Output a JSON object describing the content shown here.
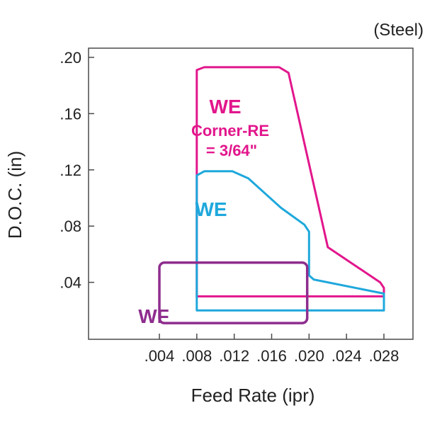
{
  "chart_data": {
    "type": "area",
    "title": "",
    "annotation": "(Steel)",
    "xlabel": "Feed Rate (ipr)",
    "ylabel": "D.O.C. (in)",
    "xlim": [
      0.0,
      0.028
    ],
    "ylim": [
      0.0,
      0.2
    ],
    "x_ticks": [
      ".004",
      ".008",
      ".012",
      ".016",
      ".020",
      ".024",
      ".028"
    ],
    "x_tick_values": [
      0.004,
      0.008,
      0.012,
      0.016,
      0.02,
      0.024,
      0.028
    ],
    "y_ticks": [
      ".04",
      ".08",
      ".12",
      ".16",
      ".20"
    ],
    "y_tick_values": [
      0.04,
      0.08,
      0.12,
      0.16,
      0.2
    ],
    "grid": false,
    "series": [
      {
        "name": "WE Corner-RE = 3/64\"",
        "label_lines": [
          "WE",
          "Corner-RE",
          "= 3/64\""
        ],
        "color": "#e2168c",
        "points": [
          [
            0.008,
            0.03
          ],
          [
            0.008,
            0.191
          ],
          [
            0.0088,
            0.193
          ],
          [
            0.0168,
            0.193
          ],
          [
            0.0178,
            0.189
          ],
          [
            0.022,
            0.065
          ],
          [
            0.0276,
            0.04
          ],
          [
            0.028,
            0.036
          ],
          [
            0.028,
            0.03
          ]
        ]
      },
      {
        "name": "WE",
        "label_lines": [
          "WE"
        ],
        "color": "#1ea8dc",
        "points": [
          [
            0.008,
            0.02
          ],
          [
            0.008,
            0.116
          ],
          [
            0.0088,
            0.119
          ],
          [
            0.0118,
            0.119
          ],
          [
            0.0135,
            0.114
          ],
          [
            0.017,
            0.093
          ],
          [
            0.0195,
            0.081
          ],
          [
            0.02,
            0.076
          ],
          [
            0.02,
            0.045
          ],
          [
            0.0205,
            0.042
          ],
          [
            0.028,
            0.032
          ],
          [
            0.028,
            0.02
          ]
        ]
      },
      {
        "name": "WF",
        "label_lines": [
          "WF"
        ],
        "color": "#8e2d8e",
        "rect": {
          "x0": 0.004,
          "x1": 0.0198,
          "y0": 0.011,
          "y1": 0.054
        }
      }
    ]
  }
}
